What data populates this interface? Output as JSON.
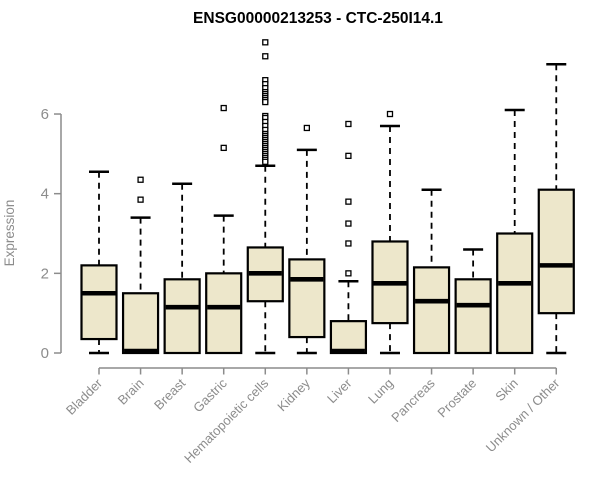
{
  "page": {
    "background": "#FFFFFF"
  },
  "chart_data": {
    "type": "boxplot",
    "title": "ENSG00000213253 - CTC-250I14.1",
    "ylabel": "Expression",
    "xlabel": "",
    "yticks": [
      "0",
      "2",
      "4",
      "6"
    ],
    "ylim": [
      0,
      7.9
    ],
    "grid": false,
    "legend": false,
    "categories": [
      "Bladder",
      "Brain",
      "Breast",
      "Gastric",
      "Hematopoietic cells",
      "Kidney",
      "Liver",
      "Lung",
      "Pancreas",
      "Prostate",
      "Skin",
      "Unknown / Other"
    ],
    "series": [
      {
        "category": "Bladder",
        "min": 0,
        "q1": 0.35,
        "median": 1.5,
        "q3": 2.2,
        "max": 4.55,
        "outliers": []
      },
      {
        "category": "Brain",
        "min": 0,
        "q1": 0.0,
        "median": 0.05,
        "q3": 1.5,
        "max": 3.4,
        "outliers": [
          4.35,
          3.85
        ]
      },
      {
        "category": "Breast",
        "min": 0,
        "q1": 0.0,
        "median": 1.15,
        "q3": 1.85,
        "max": 4.25,
        "outliers": []
      },
      {
        "category": "Gastric",
        "min": 0,
        "q1": 0.0,
        "median": 1.15,
        "q3": 2.0,
        "max": 3.45,
        "outliers": [
          6.15,
          5.15
        ]
      },
      {
        "category": "Hematopoietic cells",
        "min": 0,
        "q1": 1.3,
        "median": 2.0,
        "q3": 2.65,
        "max": 4.7,
        "outliers": [
          7.8,
          7.45,
          6.85,
          6.75,
          6.65,
          6.55,
          6.5,
          6.45,
          6.4,
          6.35,
          6.3,
          5.95,
          5.9,
          5.8,
          5.7,
          5.6,
          5.5,
          5.45,
          5.4,
          5.35,
          5.3,
          5.25,
          5.2,
          5.15,
          5.1,
          5.05,
          5.0,
          4.95,
          4.9,
          4.85,
          4.8
        ]
      },
      {
        "category": "Kidney",
        "min": 0,
        "q1": 0.4,
        "median": 1.85,
        "q3": 2.35,
        "max": 5.1,
        "outliers": [
          5.65
        ]
      },
      {
        "category": "Liver",
        "min": 0,
        "q1": 0.0,
        "median": 0.05,
        "q3": 0.8,
        "max": 1.8,
        "outliers": [
          5.75,
          4.95,
          3.8,
          3.25,
          2.75,
          2.0
        ]
      },
      {
        "category": "Lung",
        "min": 0,
        "q1": 0.75,
        "median": 1.75,
        "q3": 2.8,
        "max": 5.7,
        "outliers": [
          6.0
        ]
      },
      {
        "category": "Pancreas",
        "min": 0,
        "q1": 0.0,
        "median": 1.3,
        "q3": 2.15,
        "max": 4.1,
        "outliers": []
      },
      {
        "category": "Prostate",
        "min": 0,
        "q1": 0.0,
        "median": 1.2,
        "q3": 1.85,
        "max": 2.6,
        "outliers": []
      },
      {
        "category": "Skin",
        "min": 0,
        "q1": 0.0,
        "median": 1.75,
        "q3": 3.0,
        "max": 6.1,
        "outliers": []
      },
      {
        "category": "Unknown / Other",
        "min": 0,
        "q1": 1.0,
        "median": 2.2,
        "q3": 4.1,
        "max": 7.25,
        "outliers": []
      }
    ],
    "colors": {
      "box_fill": "#EDE7CB",
      "box_stroke": "#000000",
      "median": "#000000",
      "whisker": "#000000",
      "outlier_stroke": "#000000",
      "outlier_fill": "#FFFFFF",
      "axis": "#8C8C8C",
      "tick_label": "#8C8C8C",
      "title": "#000000"
    }
  }
}
